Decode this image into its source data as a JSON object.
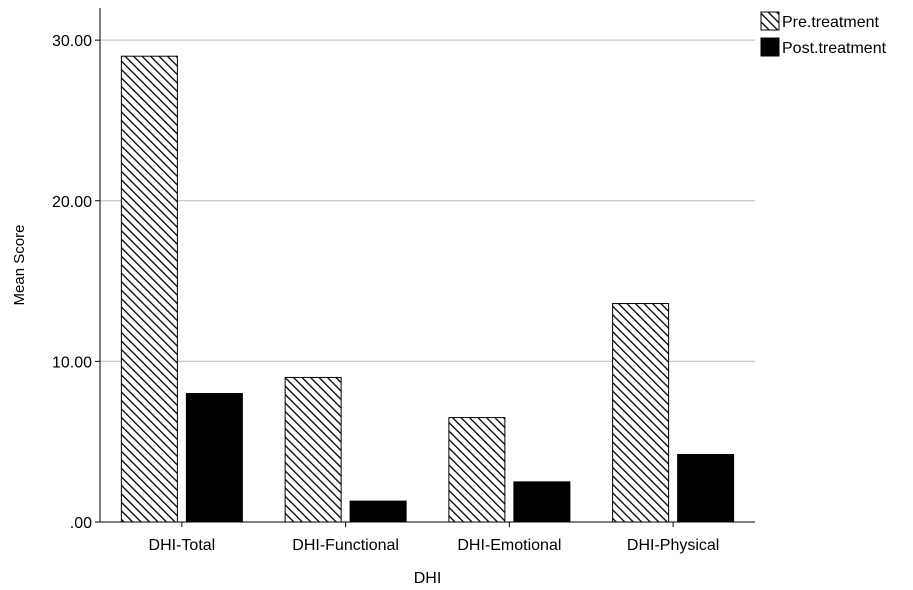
{
  "chart_data": {
    "type": "bar",
    "title": "",
    "xlabel": "DHI",
    "ylabel": "Mean Score",
    "categories": [
      "DHI-Total",
      "DHI-Functional",
      "DHI-Emotional",
      "DHI-Physical"
    ],
    "series": [
      {
        "name": "Pre.treatment",
        "values": [
          29.0,
          9.0,
          6.5,
          13.6
        ],
        "fill": "hatched"
      },
      {
        "name": "Post.treatment",
        "values": [
          8.0,
          1.3,
          2.5,
          4.2
        ],
        "fill": "#000000"
      }
    ],
    "ylim": [
      0,
      32
    ],
    "yticks": [
      0,
      10,
      20,
      30
    ],
    "ytick_labels": [
      ".00",
      "10.00",
      "20.00",
      "30.00"
    ],
    "grid": true,
    "legend_position": "top-right"
  }
}
